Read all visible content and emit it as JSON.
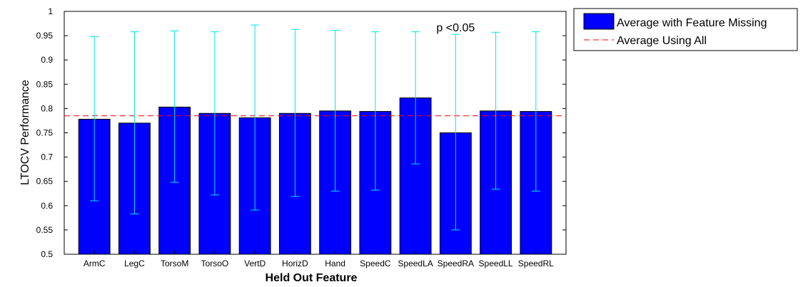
{
  "chart_data": {
    "type": "bar",
    "categories": [
      "ArmC",
      "LegC",
      "TorsoM",
      "TorsoO",
      "VertD",
      "HorizD",
      "Hand",
      "SpeedC",
      "SpeedLA",
      "SpeedRA",
      "SpeedLL",
      "SpeedRL"
    ],
    "series": [
      {
        "name": "Average with Feature Missing",
        "values": [
          0.778,
          0.77,
          0.803,
          0.79,
          0.781,
          0.79,
          0.795,
          0.794,
          0.822,
          0.75,
          0.795,
          0.794
        ],
        "error_low": [
          0.61,
          0.583,
          0.648,
          0.622,
          0.591,
          0.619,
          0.63,
          0.632,
          0.686,
          0.55,
          0.634,
          0.63
        ],
        "error_high": [
          0.948,
          0.958,
          0.96,
          0.958,
          0.972,
          0.963,
          0.961,
          0.958,
          0.958,
          0.953,
          0.957,
          0.958
        ],
        "color": "#0000ff"
      }
    ],
    "reference_line": {
      "name": "Average Using All",
      "value": 0.785,
      "color": "#ff0000",
      "style": "dashed"
    },
    "error_bar_color": "#00e5e5",
    "xlabel": "Held Out Feature",
    "ylabel": "LTOCV Performance",
    "ylim": [
      0.5,
      1
    ],
    "yticks": [
      "0.5",
      "0.55",
      "0.6",
      "0.65",
      "0.7",
      "0.75",
      "0.8",
      "0.85",
      "0.9",
      "0.95",
      "1"
    ],
    "annotation": "p <0.05",
    "annotation_category": "SpeedRA",
    "legend": {
      "placement": "top-right-outside"
    },
    "grid": false
  }
}
